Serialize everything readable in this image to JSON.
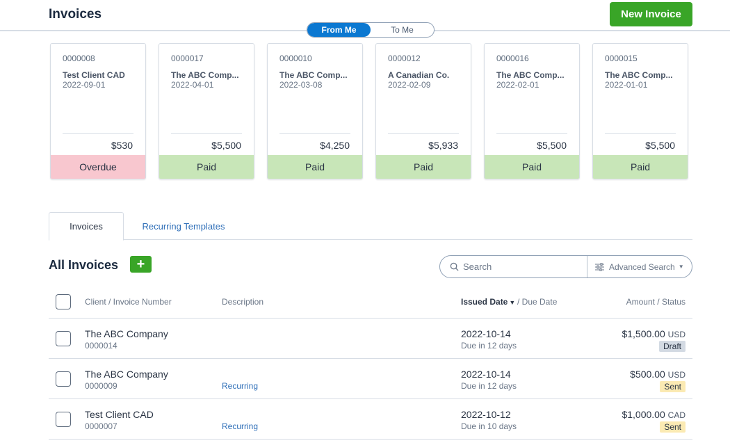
{
  "header": {
    "title": "Invoices",
    "new_invoice_label": "New Invoice",
    "toggle": {
      "from_me": "From Me",
      "to_me": "To Me",
      "active": "from_me"
    }
  },
  "cards": [
    {
      "number": "0000008",
      "client": "Test Client CAD",
      "date": "2022-09-01",
      "amount": "$530",
      "status": "Overdue"
    },
    {
      "number": "0000017",
      "client": "The ABC Comp...",
      "date": "2022-04-01",
      "amount": "$5,500",
      "status": "Paid"
    },
    {
      "number": "0000010",
      "client": "The ABC Comp...",
      "date": "2022-03-08",
      "amount": "$4,250",
      "status": "Paid"
    },
    {
      "number": "0000012",
      "client": "A Canadian Co.",
      "date": "2022-02-09",
      "amount": "$5,933",
      "status": "Paid"
    },
    {
      "number": "0000016",
      "client": "The ABC Comp...",
      "date": "2022-02-01",
      "amount": "$5,500",
      "status": "Paid"
    },
    {
      "number": "0000015",
      "client": "The ABC Comp...",
      "date": "2022-01-01",
      "amount": "$5,500",
      "status": "Paid"
    }
  ],
  "tabs": {
    "invoices": "Invoices",
    "recurring": "Recurring Templates"
  },
  "list": {
    "title": "All Invoices",
    "add_label": "+",
    "search_placeholder": "Search",
    "advanced_search_label": "Advanced Search"
  },
  "table": {
    "headers": {
      "client": "Client / Invoice Number",
      "description": "Description",
      "issued": "Issued Date",
      "due": "/ Due Date",
      "amount": "Amount / Status"
    },
    "rows": [
      {
        "client": "The ABC Company",
        "number": "0000014",
        "description": "",
        "issued": "2022-10-14",
        "due": "Due in 12 days",
        "amount": "$1,500.00",
        "currency": "USD",
        "status": "Draft"
      },
      {
        "client": "The ABC Company",
        "number": "0000009",
        "description": "Recurring",
        "issued": "2022-10-14",
        "due": "Due in 12 days",
        "amount": "$500.00",
        "currency": "USD",
        "status": "Sent"
      },
      {
        "client": "Test Client CAD",
        "number": "0000007",
        "description": "Recurring",
        "issued": "2022-10-12",
        "due": "Due in 10 days",
        "amount": "$1,000.00",
        "currency": "CAD",
        "status": "Sent"
      }
    ]
  },
  "colors": {
    "brand_green": "#39a527",
    "accent_blue": "#0b78d1",
    "overdue": "#f8c7cf",
    "paid": "#c8e6b8",
    "draft": "#d3dae3",
    "sent": "#fbeab3"
  },
  "icons": {
    "search": "search-icon",
    "filter": "sliders-icon",
    "caret": "chevron-down-icon"
  }
}
